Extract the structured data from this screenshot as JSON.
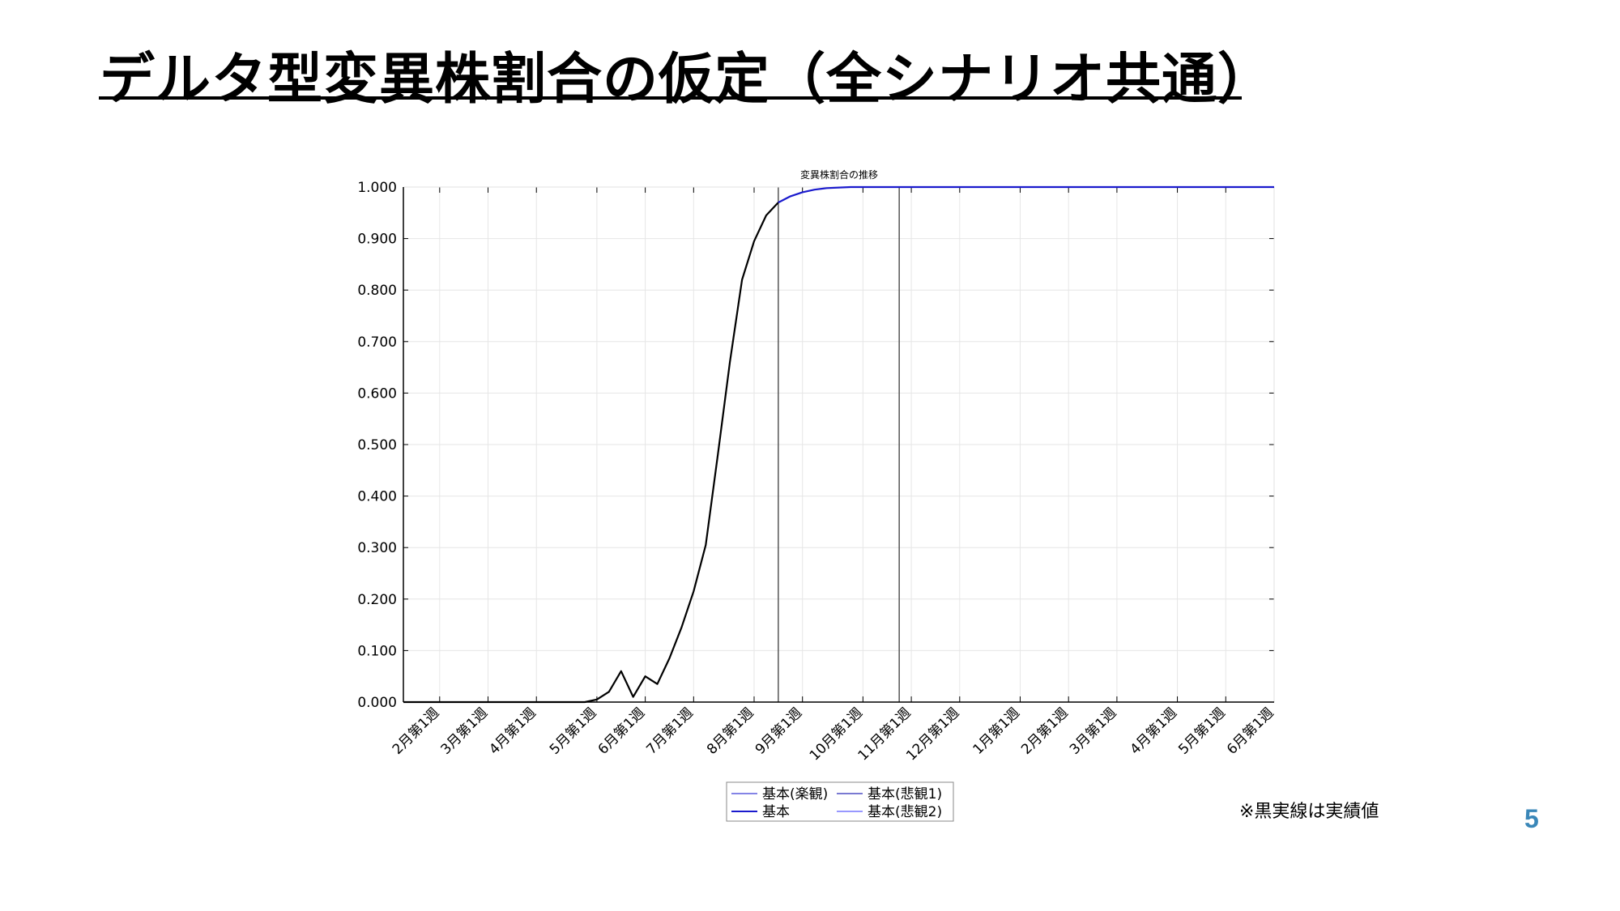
{
  "slide": {
    "title": "デルタ型変異株割合の仮定（全シナリオ共通）",
    "footnote": "※黒実線は実績値",
    "page_number": "5"
  },
  "colors": {
    "actual": "#000000",
    "forecast": "#1a1acd",
    "grid": "#e6e6e6",
    "vline": "#555555",
    "page_number": "#3a87b8"
  },
  "chart_data": {
    "type": "line",
    "title": "変異株割合の推移",
    "xlabel": "",
    "ylabel": "",
    "ylim": [
      0,
      1
    ],
    "y_ticks": [
      "0.000",
      "0.100",
      "0.200",
      "0.300",
      "0.400",
      "0.500",
      "0.600",
      "0.700",
      "0.800",
      "0.900",
      "1.000"
    ],
    "x_start_week": "1月第4週",
    "x_week_count": 73,
    "x_ticks": [
      {
        "label": "2月第1週",
        "week": 3
      },
      {
        "label": "3月第1週",
        "week": 7
      },
      {
        "label": "4月第1週",
        "week": 11
      },
      {
        "label": "5月第1週",
        "week": 16
      },
      {
        "label": "6月第1週",
        "week": 20
      },
      {
        "label": "7月第1週",
        "week": 24
      },
      {
        "label": "8月第1週",
        "week": 29
      },
      {
        "label": "9月第1週",
        "week": 33
      },
      {
        "label": "10月第1週",
        "week": 38
      },
      {
        "label": "11月第1週",
        "week": 42
      },
      {
        "label": "12月第1週",
        "week": 46
      },
      {
        "label": "1月第1週",
        "week": 51
      },
      {
        "label": "2月第1週",
        "week": 55
      },
      {
        "label": "3月第1週",
        "week": 59
      },
      {
        "label": "4月第1週",
        "week": 64
      },
      {
        "label": "5月第1週",
        "week": 68
      },
      {
        "label": "6月第1週",
        "week": 72
      }
    ],
    "vertical_lines": [
      31,
      41
    ],
    "grid": true,
    "legend_position": "bottom-center",
    "legend": [
      "基本(楽観)",
      "基本(悲観1)",
      "基本",
      "基本(悲観2)"
    ],
    "series": [
      {
        "name": "実績値",
        "x": [
          0,
          1,
          2,
          3,
          4,
          5,
          6,
          7,
          8,
          9,
          10,
          11,
          12,
          13,
          14,
          15,
          16,
          17,
          18,
          19,
          20,
          21,
          22,
          23,
          24,
          25,
          26,
          27,
          28,
          29,
          30,
          31
        ],
        "values": [
          0,
          0,
          0,
          0,
          0,
          0,
          0,
          0,
          0,
          0,
          0,
          0,
          0,
          0,
          0,
          0,
          0.005,
          0.02,
          0.06,
          0.01,
          0.05,
          0.035,
          0.085,
          0.145,
          0.215,
          0.305,
          0.48,
          0.66,
          0.82,
          0.895,
          0.945,
          0.97
        ]
      },
      {
        "name": "基本",
        "x": [
          31,
          32,
          33,
          34,
          35,
          36,
          37,
          38,
          40,
          45,
          55,
          65,
          72
        ],
        "values": [
          0.97,
          0.982,
          0.99,
          0.995,
          0.998,
          0.999,
          1.0,
          1.0,
          1.0,
          1.0,
          1.0,
          1.0,
          1.0
        ]
      }
    ]
  }
}
